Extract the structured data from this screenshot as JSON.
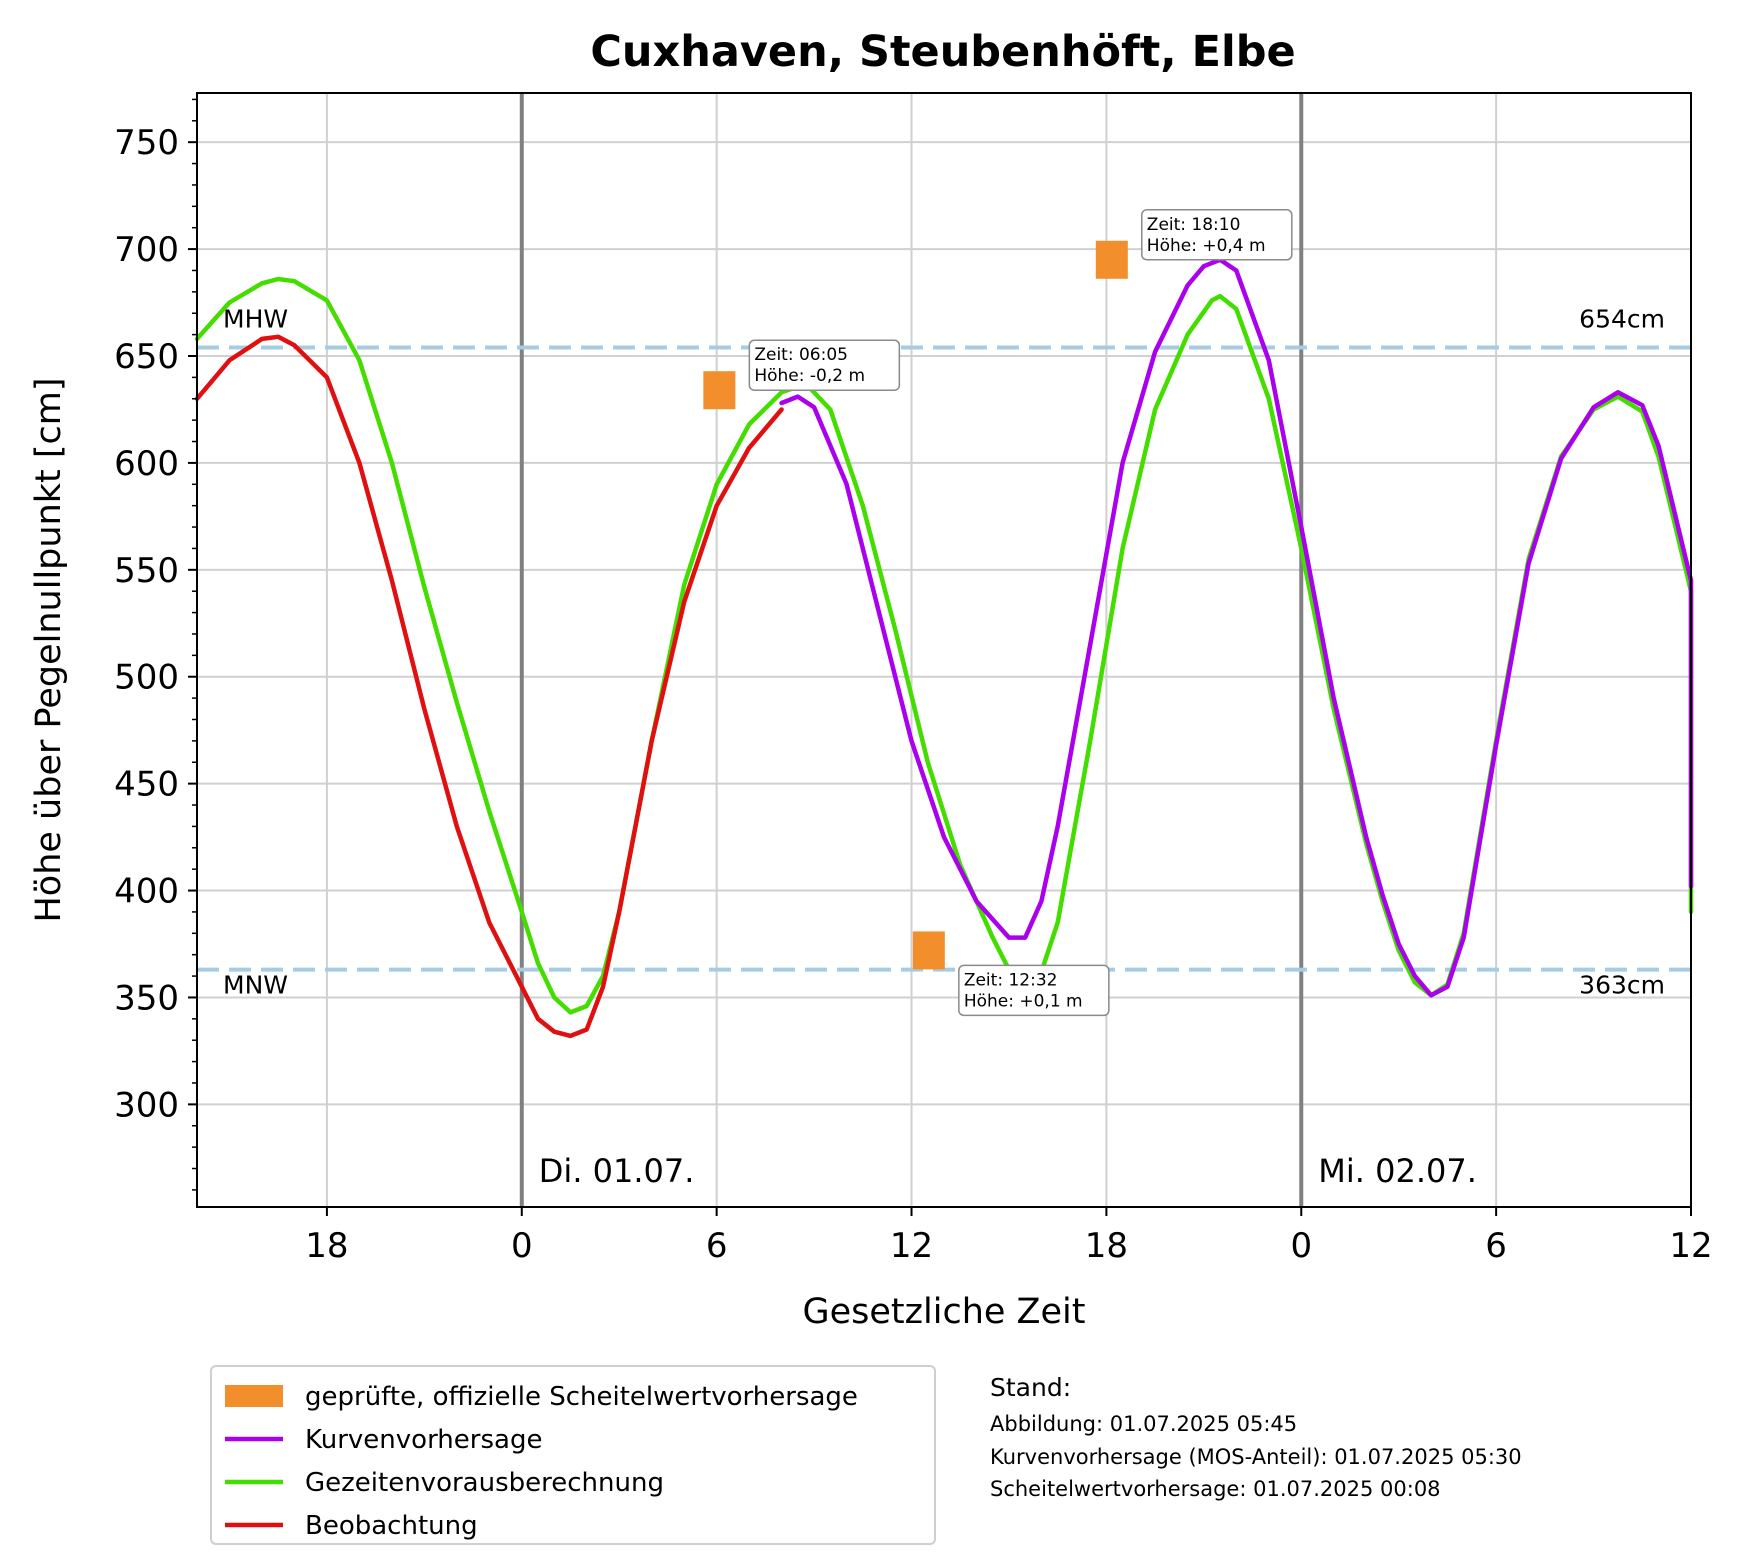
{
  "chart_data": {
    "type": "line",
    "title": "Cuxhaven, Steubenhöft, Elbe",
    "xlabel": "Gesetzliche Zeit",
    "ylabel": "Höhe über Pegelnullpunkt [cm]",
    "xlim": [
      "2025-06-30 14:00",
      "2025-07-02 12:00"
    ],
    "ylim": [
      252,
      773
    ],
    "grid": true,
    "x_ticks": [
      {
        "t": "2025-06-30 18:00",
        "label": "18"
      },
      {
        "t": "2025-07-01 00:00",
        "label": "0"
      },
      {
        "t": "2025-07-01 06:00",
        "label": "6"
      },
      {
        "t": "2025-07-01 12:00",
        "label": "12"
      },
      {
        "t": "2025-07-01 18:00",
        "label": "18"
      },
      {
        "t": "2025-07-02 00:00",
        "label": "0"
      },
      {
        "t": "2025-07-02 06:00",
        "label": "6"
      },
      {
        "t": "2025-07-02 12:00",
        "label": "12"
      }
    ],
    "y_ticks": [
      300,
      350,
      400,
      450,
      500,
      550,
      600,
      650,
      700,
      750
    ],
    "day_lines": [
      {
        "t": "2025-07-01 00:00",
        "label": "Di. 01.07."
      },
      {
        "t": "2025-07-02 00:00",
        "label": "Mi. 02.07."
      }
    ],
    "reference_lines": [
      {
        "name": "MHW",
        "value": 654,
        "value_label": "654cm"
      },
      {
        "name": "MNW",
        "value": 363,
        "value_label": "363cm"
      }
    ],
    "series": [
      {
        "name": "Gezeitenvorausberechnung",
        "color": "#44dd00",
        "points": [
          [
            "2025-06-30 14:00",
            658
          ],
          [
            "2025-06-30 15:00",
            675
          ],
          [
            "2025-06-30 16:00",
            684
          ],
          [
            "2025-06-30 16:30",
            686
          ],
          [
            "2025-06-30 17:00",
            685
          ],
          [
            "2025-06-30 18:00",
            676
          ],
          [
            "2025-06-30 19:00",
            648
          ],
          [
            "2025-06-30 20:00",
            600
          ],
          [
            "2025-06-30 21:00",
            542
          ],
          [
            "2025-06-30 22:00",
            488
          ],
          [
            "2025-06-30 23:00",
            437
          ],
          [
            "2025-07-01 00:00",
            390
          ],
          [
            "2025-07-01 00:30",
            366
          ],
          [
            "2025-07-01 01:00",
            350
          ],
          [
            "2025-07-01 01:30",
            343
          ],
          [
            "2025-07-01 02:00",
            346
          ],
          [
            "2025-07-01 02:30",
            360
          ],
          [
            "2025-07-01 03:00",
            390
          ],
          [
            "2025-07-01 04:00",
            470
          ],
          [
            "2025-07-01 05:00",
            543
          ],
          [
            "2025-07-01 06:00",
            590
          ],
          [
            "2025-07-01 07:00",
            618
          ],
          [
            "2025-07-01 08:00",
            633
          ],
          [
            "2025-07-01 08:45",
            637
          ],
          [
            "2025-07-01 09:30",
            625
          ],
          [
            "2025-07-01 10:30",
            580
          ],
          [
            "2025-07-01 11:30",
            522
          ],
          [
            "2025-07-01 12:30",
            460
          ],
          [
            "2025-07-01 13:30",
            412
          ],
          [
            "2025-07-01 14:30",
            378
          ],
          [
            "2025-07-01 15:00",
            363
          ],
          [
            "2025-07-01 15:30",
            358
          ],
          [
            "2025-07-01 16:00",
            362
          ],
          [
            "2025-07-01 16:30",
            385
          ],
          [
            "2025-07-01 17:30",
            470
          ],
          [
            "2025-07-01 18:30",
            560
          ],
          [
            "2025-07-01 19:30",
            625
          ],
          [
            "2025-07-01 20:30",
            660
          ],
          [
            "2025-07-01 21:15",
            676
          ],
          [
            "2025-07-01 21:30",
            678
          ],
          [
            "2025-07-01 22:00",
            672
          ],
          [
            "2025-07-01 23:00",
            630
          ],
          [
            "2025-07-02 00:00",
            560
          ],
          [
            "2025-07-02 01:00",
            485
          ],
          [
            "2025-07-02 02:00",
            422
          ],
          [
            "2025-07-02 02:30",
            395
          ],
          [
            "2025-07-02 03:00",
            372
          ],
          [
            "2025-07-02 03:30",
            357
          ],
          [
            "2025-07-02 04:00",
            351
          ],
          [
            "2025-07-02 04:30",
            356
          ],
          [
            "2025-07-02 05:00",
            380
          ],
          [
            "2025-07-02 06:00",
            470
          ],
          [
            "2025-07-02 07:00",
            555
          ],
          [
            "2025-07-02 08:00",
            603
          ],
          [
            "2025-07-02 09:00",
            625
          ],
          [
            "2025-07-02 09:45",
            631
          ],
          [
            "2025-07-02 10:30",
            624
          ],
          [
            "2025-07-02 11:00",
            603
          ],
          [
            "2025-07-02 12:00",
            540
          ],
          [
            "2025-07-02 12:00",
            390
          ]
        ]
      },
      {
        "name": "Beobachtung",
        "color": "#e01010",
        "points": [
          [
            "2025-06-30 14:00",
            630
          ],
          [
            "2025-06-30 15:00",
            648
          ],
          [
            "2025-06-30 16:00",
            658
          ],
          [
            "2025-06-30 16:30",
            659
          ],
          [
            "2025-06-30 17:00",
            655
          ],
          [
            "2025-06-30 18:00",
            640
          ],
          [
            "2025-06-30 19:00",
            600
          ],
          [
            "2025-06-30 20:00",
            545
          ],
          [
            "2025-06-30 21:00",
            485
          ],
          [
            "2025-06-30 22:00",
            430
          ],
          [
            "2025-06-30 23:00",
            385
          ],
          [
            "2025-07-01 00:00",
            355
          ],
          [
            "2025-07-01 00:30",
            340
          ],
          [
            "2025-07-01 01:00",
            334
          ],
          [
            "2025-07-01 01:30",
            332
          ],
          [
            "2025-07-01 02:00",
            335
          ],
          [
            "2025-07-01 02:30",
            355
          ],
          [
            "2025-07-01 03:00",
            390
          ],
          [
            "2025-07-01 04:00",
            470
          ],
          [
            "2025-07-01 05:00",
            535
          ],
          [
            "2025-07-01 06:00",
            580
          ],
          [
            "2025-07-01 07:00",
            607
          ],
          [
            "2025-07-01 08:00",
            625
          ]
        ]
      },
      {
        "name": "Kurvenvorhersage",
        "color": "#aa00ee",
        "points": [
          [
            "2025-07-01 08:00",
            628
          ],
          [
            "2025-07-01 08:30",
            631
          ],
          [
            "2025-07-01 09:00",
            626
          ],
          [
            "2025-07-01 10:00",
            590
          ],
          [
            "2025-07-01 11:00",
            530
          ],
          [
            "2025-07-01 12:00",
            470
          ],
          [
            "2025-07-01 13:00",
            425
          ],
          [
            "2025-07-01 14:00",
            395
          ],
          [
            "2025-07-01 15:00",
            378
          ],
          [
            "2025-07-01 15:30",
            378
          ],
          [
            "2025-07-01 16:00",
            395
          ],
          [
            "2025-07-01 16:30",
            430
          ],
          [
            "2025-07-01 17:30",
            515
          ],
          [
            "2025-07-01 18:30",
            600
          ],
          [
            "2025-07-01 19:30",
            652
          ],
          [
            "2025-07-01 20:30",
            683
          ],
          [
            "2025-07-01 21:00",
            692
          ],
          [
            "2025-07-01 21:30",
            695
          ],
          [
            "2025-07-01 22:00",
            690
          ],
          [
            "2025-07-01 23:00",
            648
          ],
          [
            "2025-07-02 00:00",
            570
          ],
          [
            "2025-07-02 01:00",
            490
          ],
          [
            "2025-07-02 02:00",
            425
          ],
          [
            "2025-07-02 02:30",
            398
          ],
          [
            "2025-07-02 03:00",
            375
          ],
          [
            "2025-07-02 03:30",
            360
          ],
          [
            "2025-07-02 04:00",
            351
          ],
          [
            "2025-07-02 04:30",
            355
          ],
          [
            "2025-07-02 05:00",
            378
          ],
          [
            "2025-07-02 06:00",
            468
          ],
          [
            "2025-07-02 07:00",
            553
          ],
          [
            "2025-07-02 08:00",
            602
          ],
          [
            "2025-07-02 09:00",
            626
          ],
          [
            "2025-07-02 09:45",
            633
          ],
          [
            "2025-07-02 10:30",
            627
          ],
          [
            "2025-07-02 11:00",
            608
          ],
          [
            "2025-07-02 12:00",
            545
          ],
          [
            "2025-07-02 12:00",
            402
          ]
        ]
      }
    ],
    "official_peaks": {
      "name": "geprüfte, offizielle Scheitelwertvorhersage",
      "color": "#f28e2b",
      "points": [
        {
          "t": "2025-07-01 06:05",
          "value": 634,
          "label_time": "Zeit: 06:05",
          "label_height": "Höhe: -0,2 m",
          "placement": "above-right"
        },
        {
          "t": "2025-07-01 12:32",
          "value": 372,
          "label_time": "Zeit: 12:32",
          "label_height": "Höhe: +0,1 m",
          "placement": "below-right"
        },
        {
          "t": "2025-07-01 18:10",
          "value": 695,
          "label_time": "Zeit: 18:10",
          "label_height": "Höhe: +0,4 m",
          "placement": "above-right"
        }
      ]
    },
    "legend": [
      {
        "label": "geprüfte, offizielle Scheitelwertvorhersage",
        "kind": "square",
        "color": "#f28e2b"
      },
      {
        "label": "Kurvenvorhersage",
        "kind": "line",
        "color": "#aa00ee"
      },
      {
        "label": "Gezeitenvorausberechnung",
        "kind": "line",
        "color": "#44dd00"
      },
      {
        "label": "Beobachtung",
        "kind": "line",
        "color": "#e01010"
      }
    ],
    "legend_position": "below-left"
  },
  "stand": {
    "title": "Stand:",
    "lines": [
      "Abbildung: 01.07.2025 05:45",
      "Kurvenvorhersage (MOS-Anteil): 01.07.2025 05:30",
      "Scheitelwertvorhersage: 01.07.2025 00:08"
    ]
  }
}
